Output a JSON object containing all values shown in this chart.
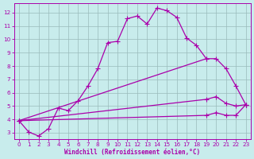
{
  "xlabel": "Windchill (Refroidissement éolien,°C)",
  "bg_color": "#c8ecec",
  "line_color": "#aa00aa",
  "grid_color": "#99bbbb",
  "xmin": -0.5,
  "xmax": 23.5,
  "ymin": 2.5,
  "ymax": 12.7,
  "xticks": [
    0,
    1,
    2,
    3,
    4,
    5,
    6,
    7,
    8,
    9,
    10,
    11,
    12,
    13,
    14,
    15,
    16,
    17,
    18,
    19,
    20,
    21,
    22,
    23
  ],
  "yticks": [
    3,
    4,
    5,
    6,
    7,
    8,
    9,
    10,
    11,
    12
  ],
  "line1_x": [
    0,
    1,
    2,
    3,
    4,
    5,
    6,
    7,
    8,
    9,
    10,
    11,
    12,
    13,
    14,
    15,
    16,
    17,
    18,
    19
  ],
  "line1_y": [
    3.9,
    3.05,
    2.75,
    3.3,
    4.85,
    4.65,
    5.4,
    6.5,
    7.8,
    9.75,
    9.85,
    11.55,
    11.75,
    11.15,
    12.35,
    12.15,
    11.65,
    10.1,
    9.55,
    8.55
  ],
  "line2_x": [
    0,
    19,
    20,
    21,
    22,
    23
  ],
  "line2_y": [
    3.9,
    8.55,
    8.55,
    7.8,
    6.5,
    5.1
  ],
  "line3_x": [
    0,
    19,
    20,
    21,
    22,
    23
  ],
  "line3_y": [
    3.9,
    5.5,
    5.7,
    5.2,
    5.0,
    5.1
  ],
  "line4_x": [
    0,
    19,
    20,
    21,
    22,
    23
  ],
  "line4_y": [
    3.9,
    4.3,
    4.5,
    4.3,
    4.3,
    5.1
  ]
}
